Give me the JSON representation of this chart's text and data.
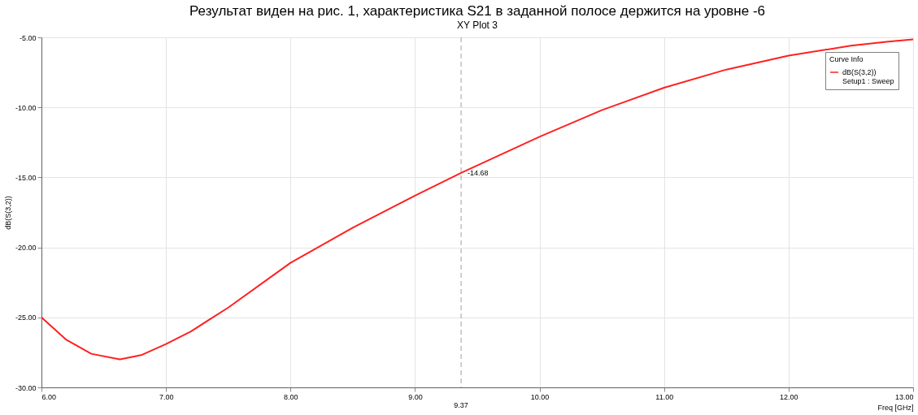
{
  "chart_data": {
    "type": "line",
    "title": "XY Plot 3",
    "xlabel": "Freq [GHz]",
    "ylabel": "dB(S(3,2))",
    "legend_title": "Curve Info",
    "annotations": [
      "Результат виден на рис. 1, характеристика S21 в заданной полосе держится на уровне -6",
      {
        "text": "-14.68",
        "x": 9.37,
        "y": -14.68
      },
      "Setup1 : Sweep"
    ],
    "x": [
      6.0,
      6.2,
      6.4,
      6.63,
      6.8,
      7.0,
      7.2,
      7.5,
      8.0,
      8.5,
      9.0,
      9.37,
      10.0,
      10.5,
      11.0,
      11.5,
      12.0,
      12.5,
      12.8,
      13.0
    ],
    "series": [
      {
        "name": "dB(S(3,2))",
        "color": "#ff2020",
        "values": [
          -25.0,
          -26.6,
          -27.6,
          -28.0,
          -27.7,
          -26.9,
          -26.0,
          -24.3,
          -21.1,
          -18.6,
          -16.3,
          -14.68,
          -12.1,
          -10.2,
          -8.6,
          -7.3,
          -6.3,
          -5.6,
          -5.3,
          -5.15
        ]
      }
    ],
    "xlim": [
      6,
      13
    ],
    "ylim": [
      -30,
      -5
    ],
    "xticks": [
      {
        "value": 6,
        "label": "6.00"
      },
      {
        "value": 7,
        "label": "7.00"
      },
      {
        "value": 8,
        "label": "8.00"
      },
      {
        "value": 9,
        "label": "9.00"
      },
      {
        "value": 10,
        "label": "10.00"
      },
      {
        "value": 11,
        "label": "11.00"
      },
      {
        "value": 12,
        "label": "12.00"
      },
      {
        "value": 13,
        "label": "13.00"
      }
    ],
    "yticks": [
      {
        "value": -30,
        "label": "-30.00"
      },
      {
        "value": -25,
        "label": "-25.00"
      },
      {
        "value": -20,
        "label": "-20.00"
      },
      {
        "value": -15,
        "label": "-15.00"
      },
      {
        "value": -10,
        "label": "-10.00"
      },
      {
        "value": -5,
        "label": "-5.00"
      }
    ],
    "ref_lines": [
      {
        "axis": "x",
        "value": 9.37,
        "label": "9.37",
        "color": "#a0a0a0",
        "line_style": "dashed"
      }
    ],
    "grid": true,
    "legend": "top right",
    "marker": "none",
    "line_style": "solid"
  }
}
